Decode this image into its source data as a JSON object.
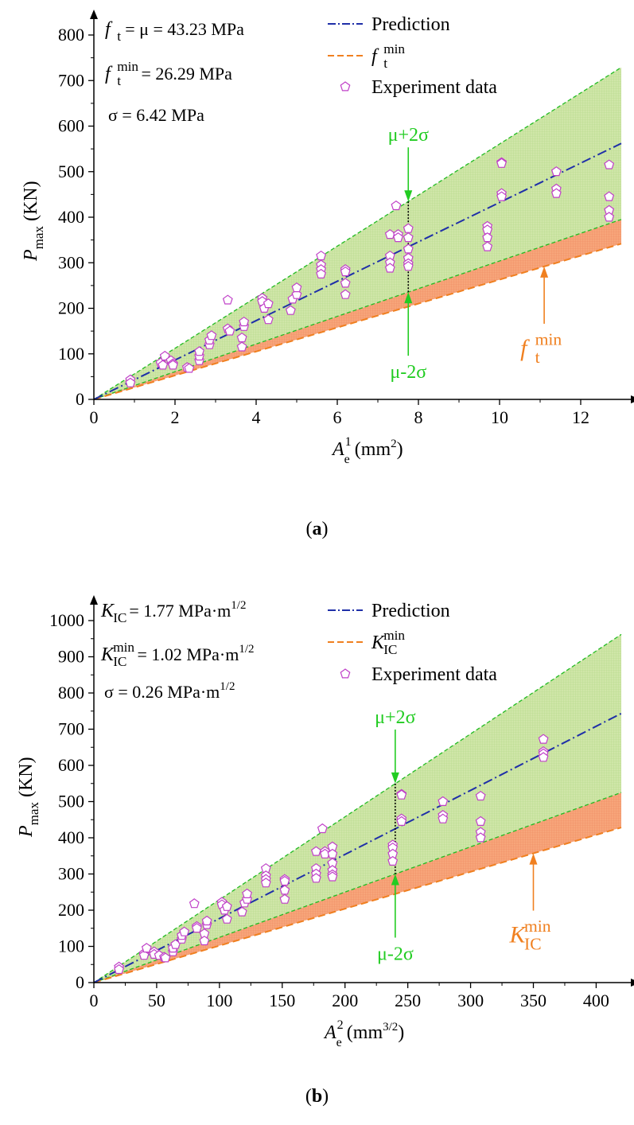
{
  "chart_data": [
    {
      "panel": "a",
      "type": "scatter",
      "caption_letter": "a",
      "xlim": [
        0,
        13
      ],
      "ylim": [
        0,
        800
      ],
      "xticks": [
        0,
        2,
        4,
        6,
        8,
        10,
        12
      ],
      "yticks": [
        0,
        100,
        200,
        300,
        400,
        500,
        600,
        700,
        800
      ],
      "x_tick_labels": [
        "0",
        "2",
        "4",
        "6",
        "8",
        "10",
        "12"
      ],
      "y_tick_labels": [
        "0",
        "100",
        "200",
        "300",
        "400",
        "500",
        "600",
        "700",
        "800"
      ],
      "xlabel": {
        "main": "A",
        "sub": "e",
        "sup": "1",
        "unit_pre": " (mm",
        "unit_sup": "2",
        "unit_post": ")"
      },
      "ylabel": {
        "main": "P",
        "sub": "max",
        "unit": " (KN)"
      },
      "annotations": {
        "line1": {
          "sym": "f",
          "sub": "t",
          "text": " = μ = 43.23 MPa"
        },
        "line2": {
          "sym": "f",
          "sub": "t",
          "sup": "min",
          "text": " = 26.29 MPa"
        },
        "line3": {
          "text": "σ = 6.42 MPa"
        },
        "upper_arrow": "μ+2σ",
        "lower_arrow": "μ-2σ",
        "min_arrow": {
          "sym": "f",
          "sub": "t",
          "sup": "min"
        }
      },
      "legend": {
        "position": "top-center",
        "prediction": "Prediction",
        "min": {
          "sym": "f",
          "sub": "t",
          "sup": "min"
        },
        "data": "Experiment data"
      },
      "slopes": {
        "prediction": 43.23,
        "upper": 56.07,
        "lower": 30.39,
        "min": 26.29
      },
      "marker_x": 7.75,
      "min_arrow_x": 11.1,
      "series": [
        {
          "name": "Experiment data",
          "points": [
            [
              0.9,
              43
            ],
            [
              0.9,
              36
            ],
            [
              1.65,
              80
            ],
            [
              1.7,
              75
            ],
            [
              1.75,
              95
            ],
            [
              1.9,
              85
            ],
            [
              1.95,
              78
            ],
            [
              1.95,
              75
            ],
            [
              2.3,
              70
            ],
            [
              2.35,
              68
            ],
            [
              2.6,
              85
            ],
            [
              2.6,
              95
            ],
            [
              2.6,
              105
            ],
            [
              2.85,
              120
            ],
            [
              2.85,
              130
            ],
            [
              2.9,
              140
            ],
            [
              3.3,
              218
            ],
            [
              3.3,
              155
            ],
            [
              3.35,
              150
            ],
            [
              3.65,
              135
            ],
            [
              3.65,
              115
            ],
            [
              3.7,
              160
            ],
            [
              3.7,
              170
            ],
            [
              4.15,
              222
            ],
            [
              4.15,
              215
            ],
            [
              4.2,
              200
            ],
            [
              4.3,
              210
            ],
            [
              4.3,
              175
            ],
            [
              4.85,
              195
            ],
            [
              4.9,
              220
            ],
            [
              5.0,
              230
            ],
            [
              5.0,
              245
            ],
            [
              5.6,
              315
            ],
            [
              5.6,
              295
            ],
            [
              5.6,
              285
            ],
            [
              5.6,
              275
            ],
            [
              6.2,
              285
            ],
            [
              6.2,
              280
            ],
            [
              6.2,
              255
            ],
            [
              6.2,
              230
            ],
            [
              7.3,
              362
            ],
            [
              7.3,
              315
            ],
            [
              7.3,
              300
            ],
            [
              7.3,
              288
            ],
            [
              7.45,
              425
            ],
            [
              7.5,
              362
            ],
            [
              7.5,
              355
            ],
            [
              7.75,
              375
            ],
            [
              7.75,
              355
            ],
            [
              7.75,
              330
            ],
            [
              7.75,
              310
            ],
            [
              7.75,
              298
            ],
            [
              7.75,
              292
            ],
            [
              9.7,
              380
            ],
            [
              9.7,
              372
            ],
            [
              9.7,
              355
            ],
            [
              9.7,
              335
            ],
            [
              10.05,
              520
            ],
            [
              10.05,
              518
            ],
            [
              10.05,
              452
            ],
            [
              10.05,
              445
            ],
            [
              11.4,
              500
            ],
            [
              11.4,
              462
            ],
            [
              11.4,
              452
            ],
            [
              12.7,
              515
            ],
            [
              12.7,
              445
            ],
            [
              12.7,
              415
            ],
            [
              12.7,
              400
            ]
          ]
        }
      ]
    },
    {
      "panel": "b",
      "type": "scatter",
      "caption_letter": "b",
      "xlim": [
        0,
        420
      ],
      "ylim": [
        0,
        1000
      ],
      "xticks": [
        0,
        50,
        100,
        150,
        200,
        250,
        300,
        350,
        400
      ],
      "yticks": [
        0,
        100,
        200,
        300,
        400,
        500,
        600,
        700,
        800,
        900,
        1000
      ],
      "x_tick_labels": [
        "0",
        "50",
        "100",
        "150",
        "200",
        "250",
        "300",
        "350",
        "400"
      ],
      "y_tick_labels": [
        "0",
        "100",
        "200",
        "300",
        "400",
        "500",
        "600",
        "700",
        "800",
        "900",
        "1000"
      ],
      "xlabel": {
        "main": "A",
        "sub": "e",
        "sup": "2",
        "unit_pre": " (mm",
        "unit_sup": "3/2",
        "unit_post": ")"
      },
      "ylabel": {
        "main": "P",
        "sub": "max",
        "unit": " (KN)"
      },
      "annotations": {
        "line1": {
          "sym": "K",
          "sub": "IC",
          "text": " = 1.77 MPa·m",
          "text_sup": "1/2"
        },
        "line2": {
          "sym": "K",
          "sub": "IC",
          "sup": "min",
          "text": " = 1.02 MPa·m",
          "text_sup": "1/2"
        },
        "line3": {
          "text": "σ = 0.26 MPa·m",
          "text_sup": "1/2"
        },
        "upper_arrow": "μ+2σ",
        "lower_arrow": "μ-2σ",
        "min_arrow": {
          "sym": "K",
          "sub": "IC",
          "sup": "min"
        }
      },
      "legend": {
        "position": "top-center",
        "prediction": "Prediction",
        "min": {
          "sym": "K",
          "sub": "IC",
          "sup": "min"
        },
        "data": "Experiment data"
      },
      "slopes": {
        "prediction": 1.77,
        "upper": 2.29,
        "lower": 1.25,
        "min": 1.02
      },
      "marker_x": 240,
      "min_arrow_x": 350,
      "series": [
        {
          "name": "Experiment data",
          "points": [
            [
              20,
              43
            ],
            [
              20,
              36
            ],
            [
              40,
              80
            ],
            [
              40,
              75
            ],
            [
              42,
              95
            ],
            [
              48,
              85
            ],
            [
              48,
              78
            ],
            [
              52,
              75
            ],
            [
              56,
              70
            ],
            [
              57,
              68
            ],
            [
              63,
              85
            ],
            [
              63,
              95
            ],
            [
              65,
              105
            ],
            [
              70,
              120
            ],
            [
              70,
              130
            ],
            [
              72,
              140
            ],
            [
              80,
              218
            ],
            [
              82,
              155
            ],
            [
              82,
              150
            ],
            [
              88,
              135
            ],
            [
              88,
              115
            ],
            [
              90,
              160
            ],
            [
              90,
              170
            ],
            [
              102,
              222
            ],
            [
              102,
              215
            ],
            [
              104,
              200
            ],
            [
              106,
              210
            ],
            [
              106,
              175
            ],
            [
              118,
              195
            ],
            [
              120,
              220
            ],
            [
              122,
              230
            ],
            [
              122,
              245
            ],
            [
              137,
              315
            ],
            [
              137,
              295
            ],
            [
              137,
              285
            ],
            [
              137,
              275
            ],
            [
              152,
              285
            ],
            [
              152,
              280
            ],
            [
              152,
              255
            ],
            [
              152,
              230
            ],
            [
              177,
              362
            ],
            [
              177,
              315
            ],
            [
              177,
              300
            ],
            [
              177,
              288
            ],
            [
              182,
              425
            ],
            [
              184,
              362
            ],
            [
              184,
              355
            ],
            [
              190,
              375
            ],
            [
              190,
              355
            ],
            [
              190,
              330
            ],
            [
              190,
              310
            ],
            [
              190,
              298
            ],
            [
              190,
              292
            ],
            [
              238,
              380
            ],
            [
              238,
              372
            ],
            [
              238,
              355
            ],
            [
              238,
              335
            ],
            [
              245,
              520
            ],
            [
              245,
              518
            ],
            [
              245,
              452
            ],
            [
              245,
              445
            ],
            [
              278,
              500
            ],
            [
              278,
              462
            ],
            [
              278,
              452
            ],
            [
              308,
              515
            ],
            [
              308,
              445
            ],
            [
              308,
              415
            ],
            [
              308,
              400
            ],
            [
              358,
              672
            ],
            [
              358,
              638
            ],
            [
              358,
              632
            ],
            [
              358,
              622
            ]
          ]
        }
      ]
    }
  ],
  "colors": {
    "prediction": "#1f2fa8",
    "band_line": "#22bb22",
    "band_fill": "#cfe6a8",
    "min_line": "#f08020",
    "min_fill": "#f7a57a",
    "marker": "#c040c8",
    "arrow_green": "#22cc22",
    "arrow_orange": "#f08020"
  }
}
